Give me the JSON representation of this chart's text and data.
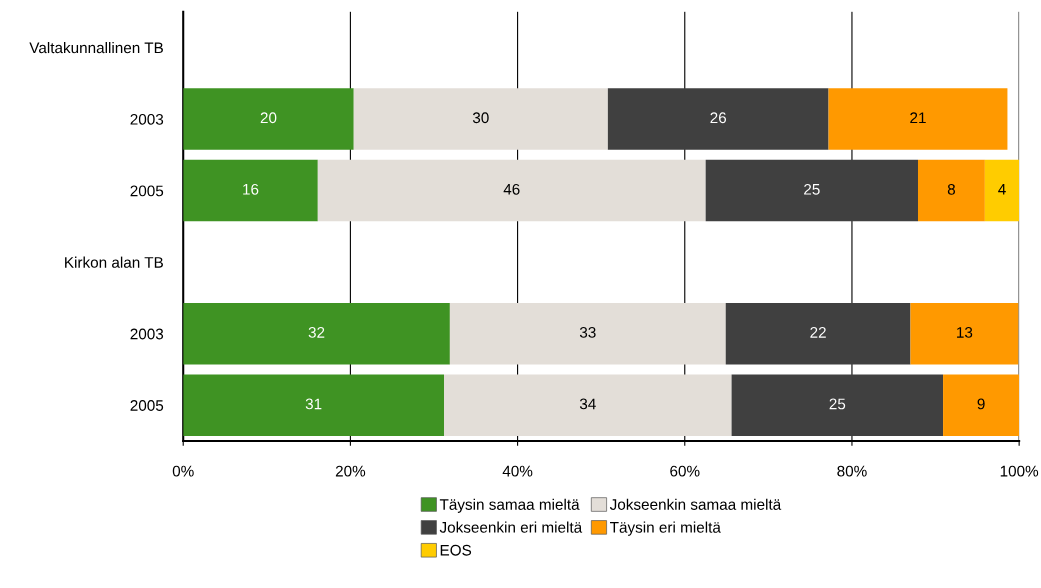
{
  "chart_data": {
    "type": "bar",
    "orientation": "horizontal",
    "stacked": true,
    "categories": [
      "Valtakunnallinen TB",
      "2003",
      "2005",
      "Kirkon alan TB",
      "2003",
      "2005"
    ],
    "series": [
      {
        "name": "Täysin samaa mieltä",
        "color": "#3f9323",
        "values": [
          null,
          20.4,
          16.1,
          null,
          31.9,
          31.2
        ],
        "value_labels": [
          null,
          "20",
          "16",
          null,
          "32",
          "31"
        ]
      },
      {
        "name": "Jokseenkin samaa mieltä",
        "color": "#e3ded8",
        "values": [
          null,
          30.4,
          46.4,
          null,
          33.0,
          34.4
        ],
        "value_labels": [
          null,
          "30",
          "46",
          null,
          "33",
          "34"
        ]
      },
      {
        "name": "Jokseenkin eri mieltä",
        "color": "#404040",
        "values": [
          null,
          26.4,
          25.4,
          null,
          22.1,
          25.3
        ],
        "value_labels": [
          null,
          "26",
          "25",
          null,
          "22",
          "25"
        ]
      },
      {
        "name": "Täysin eri mieltä",
        "color": "#ff9900",
        "values": [
          null,
          21.4,
          8.0,
          null,
          12.9,
          9.1
        ],
        "value_labels": [
          null,
          "21",
          "8",
          null,
          "13",
          "9"
        ]
      },
      {
        "name": "EOS",
        "color": "#ffcc00",
        "values": [
          null,
          null,
          4.1,
          null,
          null,
          null
        ],
        "value_labels": [
          null,
          null,
          "4",
          null,
          null,
          null
        ]
      }
    ],
    "xlim": [
      0,
      100
    ],
    "xticks": [
      {
        "value": 0,
        "label": "0%"
      },
      {
        "value": 20,
        "label": "20%"
      },
      {
        "value": 40,
        "label": "40%"
      },
      {
        "value": 60,
        "label": "60%"
      },
      {
        "value": 80,
        "label": "80%"
      },
      {
        "value": 100,
        "label": "100%"
      }
    ],
    "grid": "x",
    "legend": "bottom"
  }
}
